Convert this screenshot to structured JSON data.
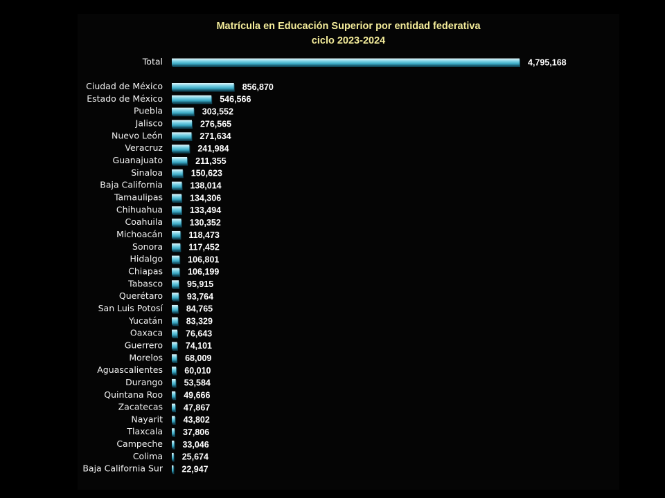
{
  "chart_data": {
    "type": "bar",
    "orientation": "horizontal",
    "title": "Matrícula en Educación Superior por entidad federativa",
    "subtitle": "ciclo 2023-2024",
    "xlabel": "",
    "ylabel": "",
    "grid": false,
    "legend": "none",
    "bar_color": "#3fb5cf",
    "bar_highlight": "#dff6fb",
    "bar_shadow": "#10485a",
    "label_color": "#f2f2f2",
    "title_color": "#f4ec9a",
    "categories": [
      "Total",
      "Ciudad de México",
      "Estado de México",
      "Puebla",
      "Jalisco",
      "Nuevo León",
      "Veracruz",
      "Guanajuato",
      "Sinaloa",
      "Baja California",
      "Tamaulipas",
      "Chihuahua",
      "Coahuila",
      "Michoacán",
      "Sonora",
      "Hidalgo",
      "Chiapas",
      "Tabasco",
      "Querétaro",
      "San Luis Potosí",
      "Yucatán",
      "Oaxaca",
      "Guerrero",
      "Morelos",
      "Aguascalientes",
      "Durango",
      "Quintana Roo",
      "Zacatecas",
      "Nayarit",
      "Tlaxcala",
      "Campeche",
      "Colima",
      "Baja California Sur"
    ],
    "values": [
      4795168,
      856870,
      546566,
      303552,
      276565,
      271634,
      241984,
      211355,
      150623,
      138014,
      134306,
      133494,
      130352,
      118473,
      117452,
      106801,
      106199,
      95915,
      93764,
      84765,
      83329,
      76643,
      74101,
      68009,
      60010,
      53584,
      49666,
      47867,
      43802,
      37806,
      33046,
      25674,
      22947
    ],
    "value_labels": [
      "4,795,168",
      "856,870",
      "546,566",
      "303,552",
      "276,565",
      "271,634",
      "241,984",
      "211,355",
      "150,623",
      "138,014",
      "134,306",
      "133,494",
      "130,352",
      "118,473",
      "117,452",
      "106,801",
      "106,199",
      "95,915",
      "93,764",
      "84,765",
      "83,329",
      "76,643",
      "74,101",
      "68,009",
      "60,010",
      "53,584",
      "49,666",
      "47,867",
      "43,802",
      "37,806",
      "33,046",
      "25,674",
      "22,947"
    ],
    "xlim": [
      0,
      4795168
    ]
  }
}
